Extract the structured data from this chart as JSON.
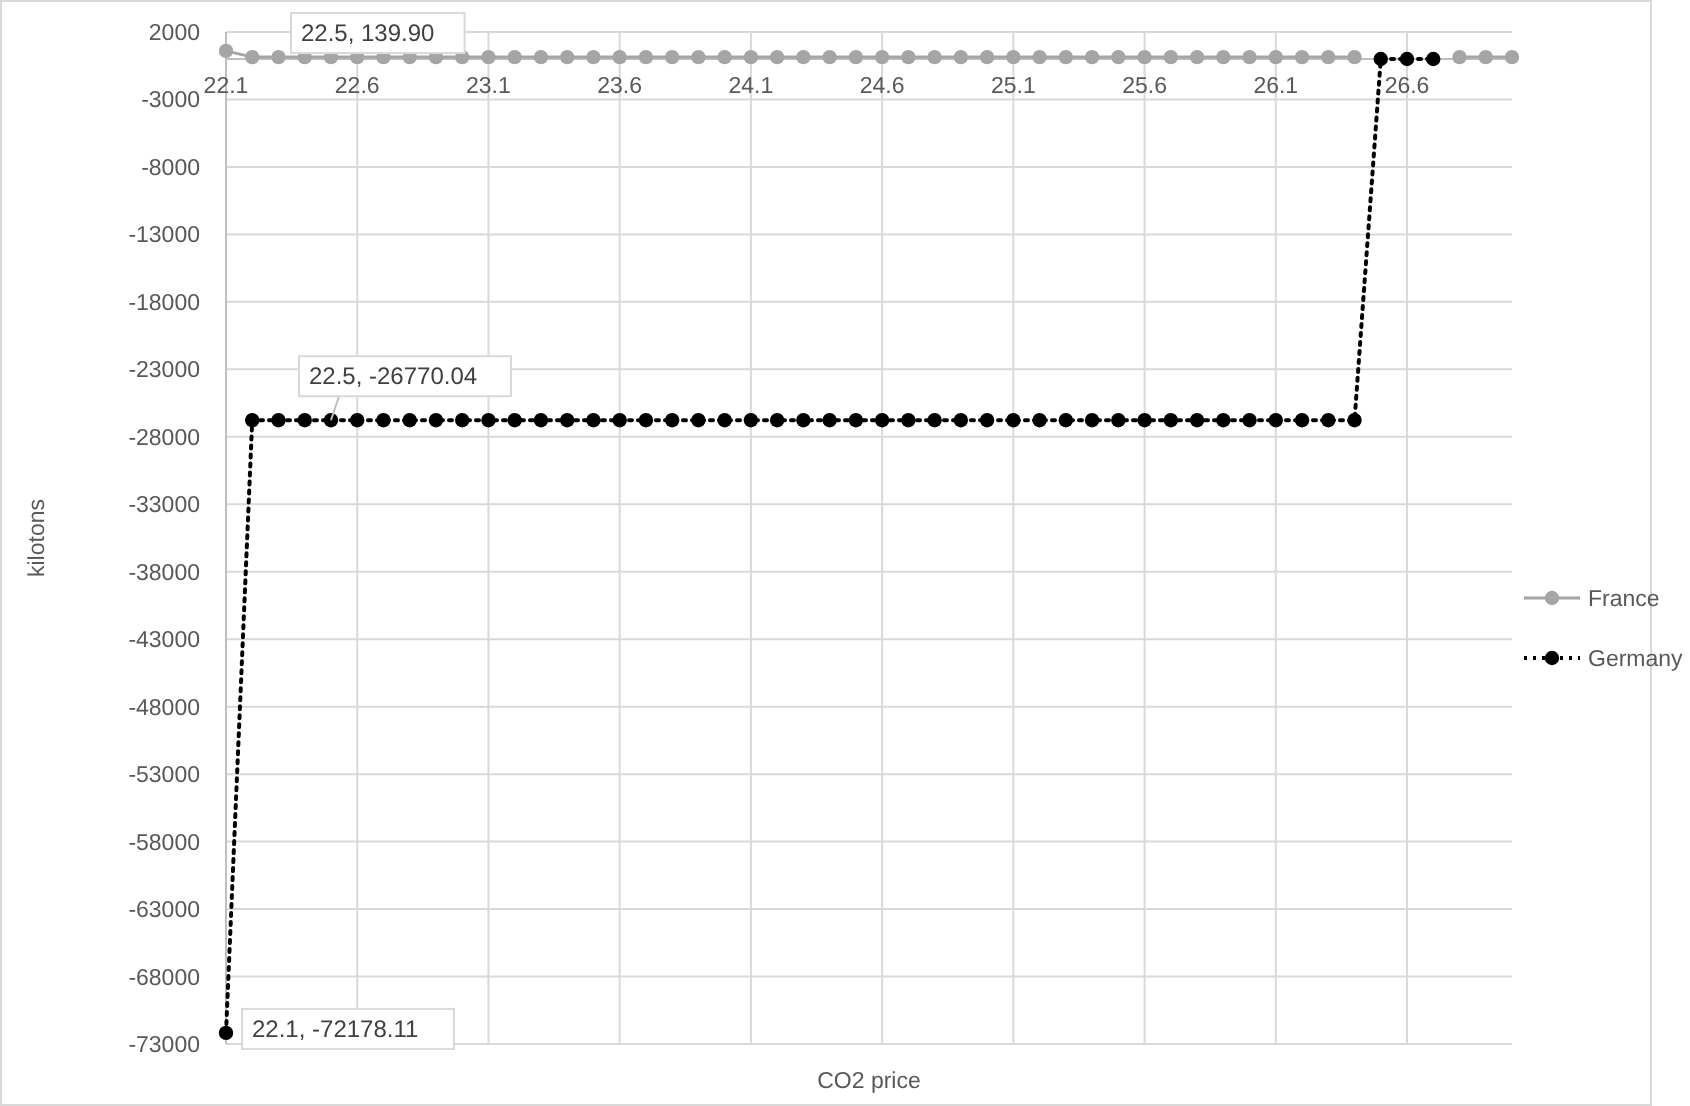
{
  "chart_data": {
    "type": "line",
    "xlabel": "CO2 price",
    "ylabel": "kilotons",
    "categories": [
      "22.1",
      null,
      null,
      null,
      null,
      "22.6",
      null,
      null,
      null,
      null,
      "23.1",
      null,
      null,
      null,
      null,
      "23.6",
      null,
      null,
      null,
      null,
      "24.1",
      null,
      null,
      null,
      null,
      "24.6",
      null,
      null,
      null,
      null,
      "25.1",
      null,
      null,
      null,
      null,
      "25.6",
      null,
      null,
      null,
      null,
      "26.1",
      null,
      null,
      null,
      null,
      "26.6",
      null,
      null,
      null,
      null
    ],
    "series": [
      {
        "name": "France",
        "color": "#a5a5a5",
        "line_style": "solid",
        "values": [
          600,
          139.9,
          139.9,
          139.9,
          139.9,
          139.9,
          139.9,
          139.9,
          139.9,
          139.9,
          139.9,
          139.9,
          139.9,
          139.9,
          139.9,
          139.9,
          139.9,
          139.9,
          139.9,
          139.9,
          139.9,
          139.9,
          139.9,
          139.9,
          139.9,
          139.9,
          139.9,
          139.9,
          139.9,
          139.9,
          139.9,
          139.9,
          139.9,
          139.9,
          139.9,
          139.9,
          139.9,
          139.9,
          139.9,
          139.9,
          139.9,
          139.9,
          139.9,
          139.9,
          null,
          null,
          null,
          139.9,
          139.9,
          139.9
        ]
      },
      {
        "name": "Germany",
        "color": "#000000",
        "line_style": "dotted",
        "values": [
          -72178.11,
          -26770.04,
          -26770.04,
          -26770.04,
          -26770.04,
          -26770.04,
          -26770.04,
          -26770.04,
          -26770.04,
          -26770.04,
          -26770.04,
          -26770.04,
          -26770.04,
          -26770.04,
          -26770.04,
          -26770.04,
          -26770.04,
          -26770.04,
          -26770.04,
          -26770.04,
          -26770.04,
          -26770.04,
          -26770.04,
          -26770.04,
          -26770.04,
          -26770.04,
          -26770.04,
          -26770.04,
          -26770.04,
          -26770.04,
          -26770.04,
          -26770.04,
          -26770.04,
          -26770.04,
          -26770.04,
          -26770.04,
          -26770.04,
          -26770.04,
          -26770.04,
          -26770.04,
          -26770.04,
          -26770.04,
          -26770.04,
          -26770.04,
          0,
          0,
          0,
          null,
          null,
          null
        ]
      }
    ],
    "ylim": [
      -73000,
      2000
    ],
    "yticks": [
      2000,
      -3000,
      -8000,
      -13000,
      -18000,
      -23000,
      -28000,
      -33000,
      -38000,
      -43000,
      -48000,
      -53000,
      -58000,
      -63000,
      -68000,
      -73000
    ],
    "grid": true,
    "marker": "circle",
    "legend": "right",
    "annotations": [
      "22.5, 139.90",
      "22.5, -26770.04",
      "22.1, -72178.11"
    ]
  }
}
